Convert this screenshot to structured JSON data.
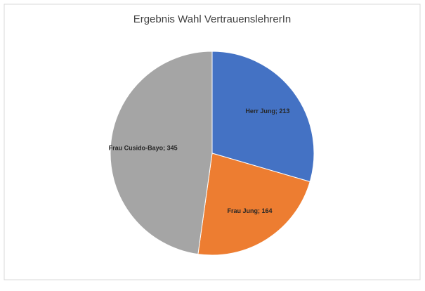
{
  "chart_data": {
    "type": "pie",
    "title": "Ergebnis Wahl VertrauenslehrerIn",
    "values": [
      213,
      164,
      345
    ],
    "value_labels": [
      "Herr Jung; 213",
      "Frau Jung; 164",
      "Frau Cusido-Bayo; 345"
    ],
    "colors": [
      "#4472c4",
      "#ed7d31",
      "#a5a5a5"
    ]
  }
}
